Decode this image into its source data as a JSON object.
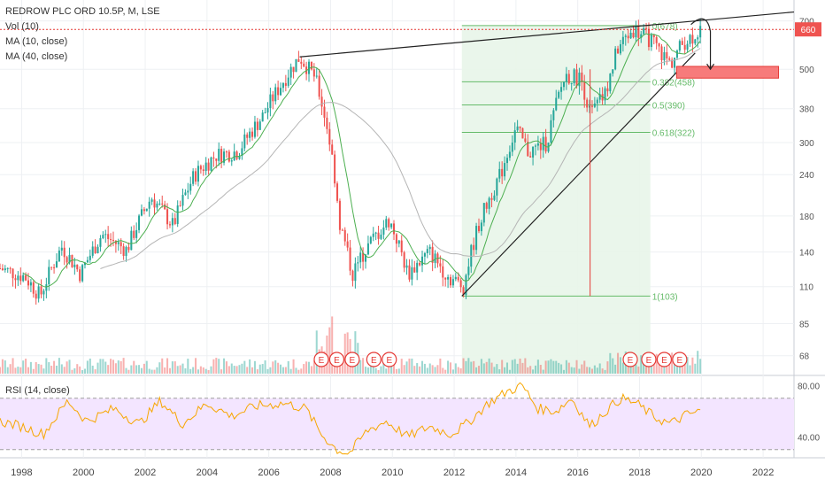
{
  "header": {
    "symbol": "REDROW PLC ORD 10.5P, M, LSE",
    "indicators": [
      "Vol (10)",
      "MA (10, close)",
      "MA (40, close)"
    ]
  },
  "rsi_header": "RSI (14, close)",
  "colors": {
    "up": "#26a69a",
    "down": "#ef5350",
    "ma10": "#4caf50",
    "ma40": "#b5b5b5",
    "fib": "#66bb6a",
    "fib_zone": "#e8f5e9",
    "rsi_line": "#f7a600",
    "rsi_band": "#f3e5ff",
    "price_label": "#ef5350"
  },
  "chart_data": [
    {
      "type": "candlestick",
      "title": "REDROW PLC ORD 10.5P, M, LSE",
      "scale": "log",
      "ylim": [
        60,
        800
      ],
      "xlim": [
        1997.3,
        2023.0
      ],
      "x_ticks": [
        "1998",
        "2000",
        "2002",
        "2004",
        "2006",
        "2008",
        "2010",
        "2012",
        "2014",
        "2016",
        "2018",
        "2020",
        "2022"
      ],
      "y_ticks": [
        68,
        85,
        110,
        140,
        180,
        240,
        300,
        380,
        500,
        700
      ],
      "last_price": "660",
      "keypoints": [
        [
          1997.3,
          125
        ],
        [
          1998.1,
          118
        ],
        [
          1998.6,
          103
        ],
        [
          1999.3,
          145
        ],
        [
          1999.9,
          120
        ],
        [
          2000.6,
          158
        ],
        [
          2001.4,
          142
        ],
        [
          2002.2,
          205
        ],
        [
          2002.9,
          168
        ],
        [
          2003.6,
          240
        ],
        [
          2004.3,
          275
        ],
        [
          2005.0,
          282
        ],
        [
          2005.8,
          360
        ],
        [
          2006.4,
          450
        ],
        [
          2007.0,
          545
        ],
        [
          2007.5,
          470
        ],
        [
          2007.9,
          330
        ],
        [
          2008.3,
          170
        ],
        [
          2008.7,
          120
        ],
        [
          2009.3,
          150
        ],
        [
          2009.9,
          175
        ],
        [
          2010.5,
          120
        ],
        [
          2011.2,
          140
        ],
        [
          2011.8,
          118
        ],
        [
          2012.3,
          110
        ],
        [
          2012.8,
          170
        ],
        [
          2013.5,
          240
        ],
        [
          2014.0,
          330
        ],
        [
          2014.4,
          280
        ],
        [
          2015.0,
          300
        ],
        [
          2015.6,
          480
        ],
        [
          2016.1,
          470
        ],
        [
          2016.4,
          365
        ],
        [
          2016.9,
          420
        ],
        [
          2017.3,
          580
        ],
        [
          2017.8,
          660
        ],
        [
          2018.3,
          620
        ],
        [
          2018.7,
          560
        ],
        [
          2019.0,
          520
        ],
        [
          2019.4,
          600
        ],
        [
          2019.8,
          640
        ],
        [
          2020.0,
          660
        ]
      ],
      "fibonacci": {
        "start_x": 2012.25,
        "end_x": 2018.35,
        "levels": [
          {
            "label": "0(678)",
            "price": 678
          },
          {
            "label": "0.382(458)",
            "price": 458
          },
          {
            "label": "0.5(390)",
            "price": 390
          },
          {
            "label": "0.618(322)",
            "price": 322
          },
          {
            "label": "1(103)",
            "price": 103
          }
        ]
      },
      "trendlines": [
        {
          "from": [
            2007.0,
            545
          ],
          "to": [
            2023.0,
            745
          ]
        },
        {
          "from": [
            2012.25,
            103
          ],
          "to": [
            2019.8,
            560
          ]
        }
      ],
      "spike_line": {
        "x": 2016.4,
        "from": 103,
        "to": 500
      },
      "target_box": {
        "x_from": 2019.2,
        "x_to": 2022.5,
        "low": 470,
        "high": 510
      },
      "horizontal_line": 660,
      "earnings_markers": {
        "label": "E",
        "x": [
          2007.7,
          2008.2,
          2008.7,
          2009.4,
          2009.9,
          2017.7,
          2018.3,
          2018.8,
          2019.3
        ]
      }
    },
    {
      "type": "line",
      "title": "RSI (14, close)",
      "ylim": [
        25,
        85
      ],
      "y_ticks": [
        "80.00",
        "40.00"
      ],
      "bands": [
        70,
        30
      ],
      "keypoints": [
        [
          1997.3,
          52
        ],
        [
          1998.0,
          48
        ],
        [
          1998.7,
          42
        ],
        [
          1999.5,
          68
        ],
        [
          2000.1,
          52
        ],
        [
          2001.0,
          62
        ],
        [
          2001.8,
          50
        ],
        [
          2002.5,
          68
        ],
        [
          2003.2,
          50
        ],
        [
          2004.0,
          66
        ],
        [
          2004.8,
          56
        ],
        [
          2005.6,
          64
        ],
        [
          2006.5,
          66
        ],
        [
          2007.2,
          62
        ],
        [
          2007.7,
          42
        ],
        [
          2008.2,
          30
        ],
        [
          2008.6,
          27
        ],
        [
          2009.2,
          45
        ],
        [
          2009.8,
          52
        ],
        [
          2010.5,
          40
        ],
        [
          2011.2,
          48
        ],
        [
          2011.9,
          42
        ],
        [
          2012.4,
          50
        ],
        [
          2013.1,
          66
        ],
        [
          2013.7,
          75
        ],
        [
          2014.2,
          80
        ],
        [
          2014.7,
          62
        ],
        [
          2015.3,
          60
        ],
        [
          2015.8,
          70
        ],
        [
          2016.4,
          48
        ],
        [
          2016.9,
          60
        ],
        [
          2017.4,
          70
        ],
        [
          2017.9,
          66
        ],
        [
          2018.5,
          55
        ],
        [
          2019.0,
          50
        ],
        [
          2019.5,
          57
        ],
        [
          2020.0,
          60
        ]
      ]
    }
  ]
}
